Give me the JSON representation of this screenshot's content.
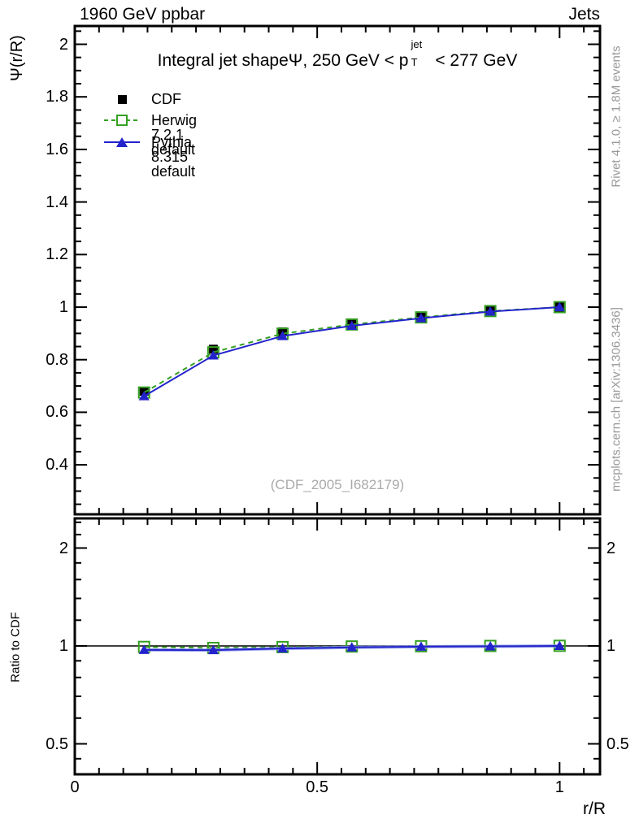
{
  "header": {
    "left": "1960 GeV ppbar",
    "right": "Jets"
  },
  "title": {
    "prefix": "Integral jet shape",
    "psi": "Ψ",
    "mid": ", 250 GeV < p",
    "sup": "jet",
    "sub": "T",
    "suffix": " < 277 GeV"
  },
  "axes": {
    "y_label": "Ψ(r/R)",
    "ratio_label": "Ratio to CDF",
    "x_label": "r/R"
  },
  "legend": {
    "items": [
      {
        "label": "CDF"
      },
      {
        "label": "Herwig 7.2.1 default"
      },
      {
        "label": "Pythia 8.315 default"
      }
    ]
  },
  "side_notes": {
    "top_right": "Rivet 4.1.0, ≥ 1.8M events",
    "bottom_right": "mcplots.cern.ch [arXiv:1306.3436]"
  },
  "watermark": "(CDF_2005_I682179)",
  "colors": {
    "cdf": "#000000",
    "herwig": "#35a022",
    "pythia": "#2323cc",
    "pythia_band": "#8a93e8",
    "gray_text": "#999999",
    "watermark": "#aaaaaa"
  },
  "chart_data": {
    "type": "line",
    "title": "Integral jet shape Ψ, 250 GeV < pT(jet) < 277 GeV",
    "xlabel": "r/R",
    "ylabel": "Ψ(r/R)",
    "ratio_ylabel": "Ratio to CDF",
    "x": [
      0.1429,
      0.2857,
      0.4286,
      0.5714,
      0.7143,
      0.8571,
      1.0
    ],
    "series": [
      {
        "name": "CDF",
        "marker": "filled-square",
        "color_key": "cdf",
        "line": "none",
        "values": [
          0.68,
          0.84,
          0.906,
          0.938,
          0.963,
          0.986,
          1.0
        ]
      },
      {
        "name": "Herwig 7.2.1 default",
        "marker": "open-square",
        "color_key": "herwig",
        "line": "dashed",
        "values": [
          0.675,
          0.828,
          0.899,
          0.934,
          0.961,
          0.985,
          1.0
        ]
      },
      {
        "name": "Pythia 8.315 default",
        "marker": "filled-triangle",
        "color_key": "pythia",
        "line": "solid",
        "values": [
          0.661,
          0.816,
          0.89,
          0.929,
          0.958,
          0.983,
          1.0
        ]
      }
    ],
    "ratio_series": [
      {
        "name": "Herwig 7.2.1 default",
        "marker": "open-square",
        "color_key": "herwig",
        "line": "dashed",
        "values": [
          0.993,
          0.986,
          0.992,
          0.996,
          0.998,
          1.0,
          1.001
        ]
      },
      {
        "name": "Pythia 8.315 default",
        "marker": "filled-triangle",
        "color_key": "pythia",
        "line": "solid",
        "band": true,
        "values": [
          0.972,
          0.971,
          0.982,
          0.99,
          0.995,
          0.997,
          1.0
        ]
      }
    ],
    "x_axis": {
      "min": 0,
      "max": 1.0833,
      "major_ticks": [
        0,
        0.5,
        1
      ],
      "tick_labels": [
        "0",
        "0.5",
        "1"
      ],
      "minor_step": 0.05
    },
    "main_y_axis": {
      "min": 0.212,
      "max": 2.07,
      "major_ticks": [
        0.4,
        0.6,
        0.8,
        1.0,
        1.2,
        1.4,
        1.6,
        1.8,
        2.0
      ],
      "tick_labels": [
        "0.4",
        "0.6",
        "0.8",
        "1",
        "1.2",
        "1.4",
        "1.6",
        "1.8",
        "2"
      ],
      "minor_step": 0.05
    },
    "ratio_y_axis": {
      "scale": "log",
      "min": 0.402,
      "max": 2.476,
      "major_ticks": [
        0.5,
        1,
        2
      ],
      "tick_labels": [
        "0.5",
        "1",
        "2"
      ],
      "minor_ticks": [
        0.45,
        0.6,
        0.7,
        0.8,
        0.9,
        1.2,
        1.4,
        1.6,
        1.8,
        2.2,
        2.4
      ],
      "ref_line": 1.0
    },
    "legend_position": "top-left",
    "grid": false
  }
}
